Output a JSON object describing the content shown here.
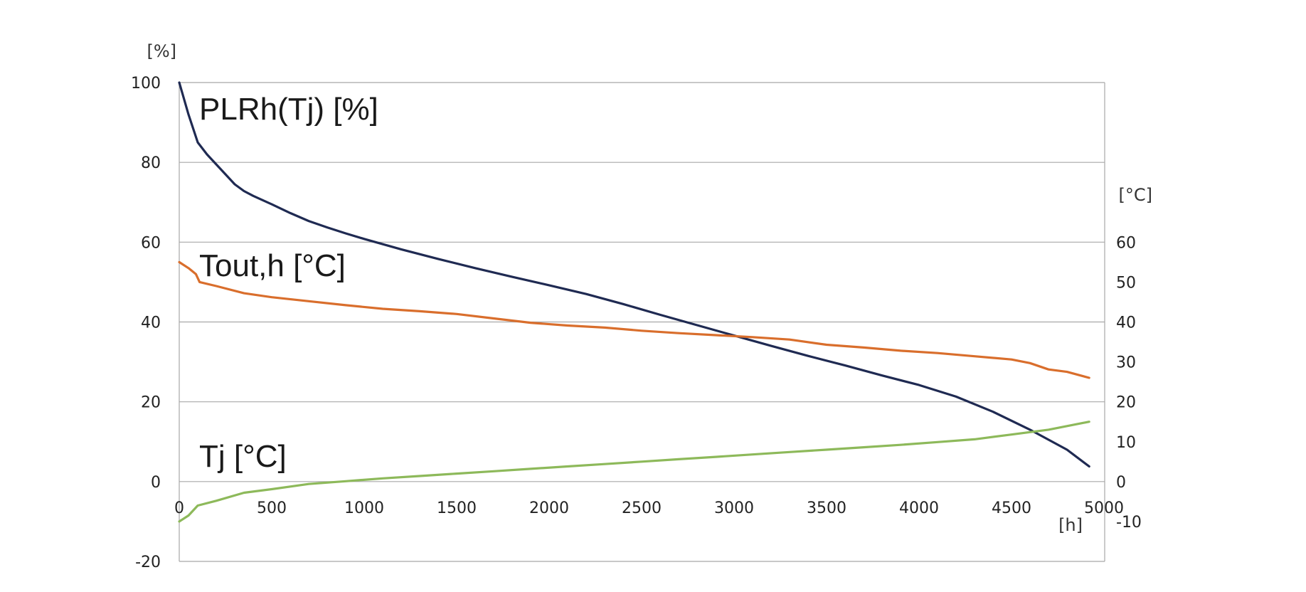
{
  "chart_data": {
    "type": "line",
    "title": "",
    "x_unit": "[h]",
    "y_left_unit": "[%]",
    "y_right_unit": "[°C]",
    "xlim": [
      0,
      5000
    ],
    "x_ticks": [
      0,
      500,
      1000,
      1500,
      2000,
      2500,
      3000,
      3500,
      4000,
      4500,
      5000
    ],
    "y_left_ticks": [
      -20,
      0,
      20,
      40,
      60,
      80,
      100
    ],
    "y_left_range": [
      -20,
      100
    ],
    "y_right_ticks": [
      -10,
      0,
      10,
      20,
      30,
      40,
      50,
      60
    ],
    "y_right_range": [
      -20,
      100
    ],
    "grid": "horizontal",
    "legend": "inline labels",
    "series": [
      {
        "name": "PLRh(Tj) [%]",
        "axis": "left",
        "color": "#1f2a52",
        "x": [
          0,
          50,
          100,
          150,
          200,
          250,
          300,
          350,
          400,
          500,
          600,
          700,
          800,
          900,
          1000,
          1200,
          1400,
          1600,
          1800,
          2000,
          2200,
          2400,
          2600,
          2800,
          3000,
          3200,
          3400,
          3600,
          3800,
          4000,
          4200,
          4400,
          4600,
          4800,
          4920
        ],
        "y": [
          100,
          92,
          85,
          82,
          79.5,
          77,
          74.5,
          72.8,
          71.6,
          69.5,
          67.3,
          65.3,
          63.7,
          62.2,
          60.8,
          58.2,
          55.8,
          53.5,
          51.3,
          49.2,
          47,
          44.5,
          41.8,
          39.2,
          36.6,
          34,
          31.5,
          29.1,
          26.6,
          24.2,
          21.3,
          17.5,
          13,
          8,
          3.8
        ]
      },
      {
        "name": "Tout,h [°C]",
        "axis": "right",
        "color": "#d96e2c",
        "x": [
          0,
          50,
          90,
          110,
          200,
          350,
          500,
          700,
          900,
          1100,
          1300,
          1500,
          1700,
          1900,
          2100,
          2300,
          2500,
          2700,
          2900,
          3100,
          3300,
          3500,
          3700,
          3900,
          4100,
          4300,
          4500,
          4600,
          4700,
          4800,
          4920
        ],
        "y": [
          55,
          53.5,
          52,
          50,
          49,
          47.2,
          46.2,
          45.2,
          44.2,
          43.3,
          42.7,
          42,
          40.9,
          39.8,
          39.1,
          38.6,
          37.8,
          37.2,
          36.7,
          36.2,
          35.6,
          34.3,
          33.6,
          32.8,
          32.2,
          31.4,
          30.6,
          29.7,
          28.1,
          27.5,
          26
        ]
      },
      {
        "name": "Tj [°C]",
        "axis": "right",
        "color": "#8db95a",
        "x": [
          0,
          50,
          100,
          200,
          350,
          500,
          700,
          900,
          1100,
          1300,
          1500,
          1700,
          1900,
          2100,
          2300,
          2500,
          2700,
          2900,
          3100,
          3300,
          3500,
          3700,
          3900,
          4100,
          4300,
          4500,
          4700,
          4920
        ],
        "y": [
          -10,
          -8.5,
          -6,
          -4.8,
          -2.8,
          -1.9,
          -0.6,
          0.1,
          0.8,
          1.4,
          2,
          2.6,
          3.2,
          3.8,
          4.4,
          5,
          5.6,
          6.2,
          6.8,
          7.4,
          8,
          8.6,
          9.2,
          9.9,
          10.6,
          11.8,
          13,
          15
        ]
      }
    ],
    "series_labels": [
      "PLRh(Tj) [%]",
      "Tout,h [°C]",
      "Tj [°C]"
    ]
  }
}
